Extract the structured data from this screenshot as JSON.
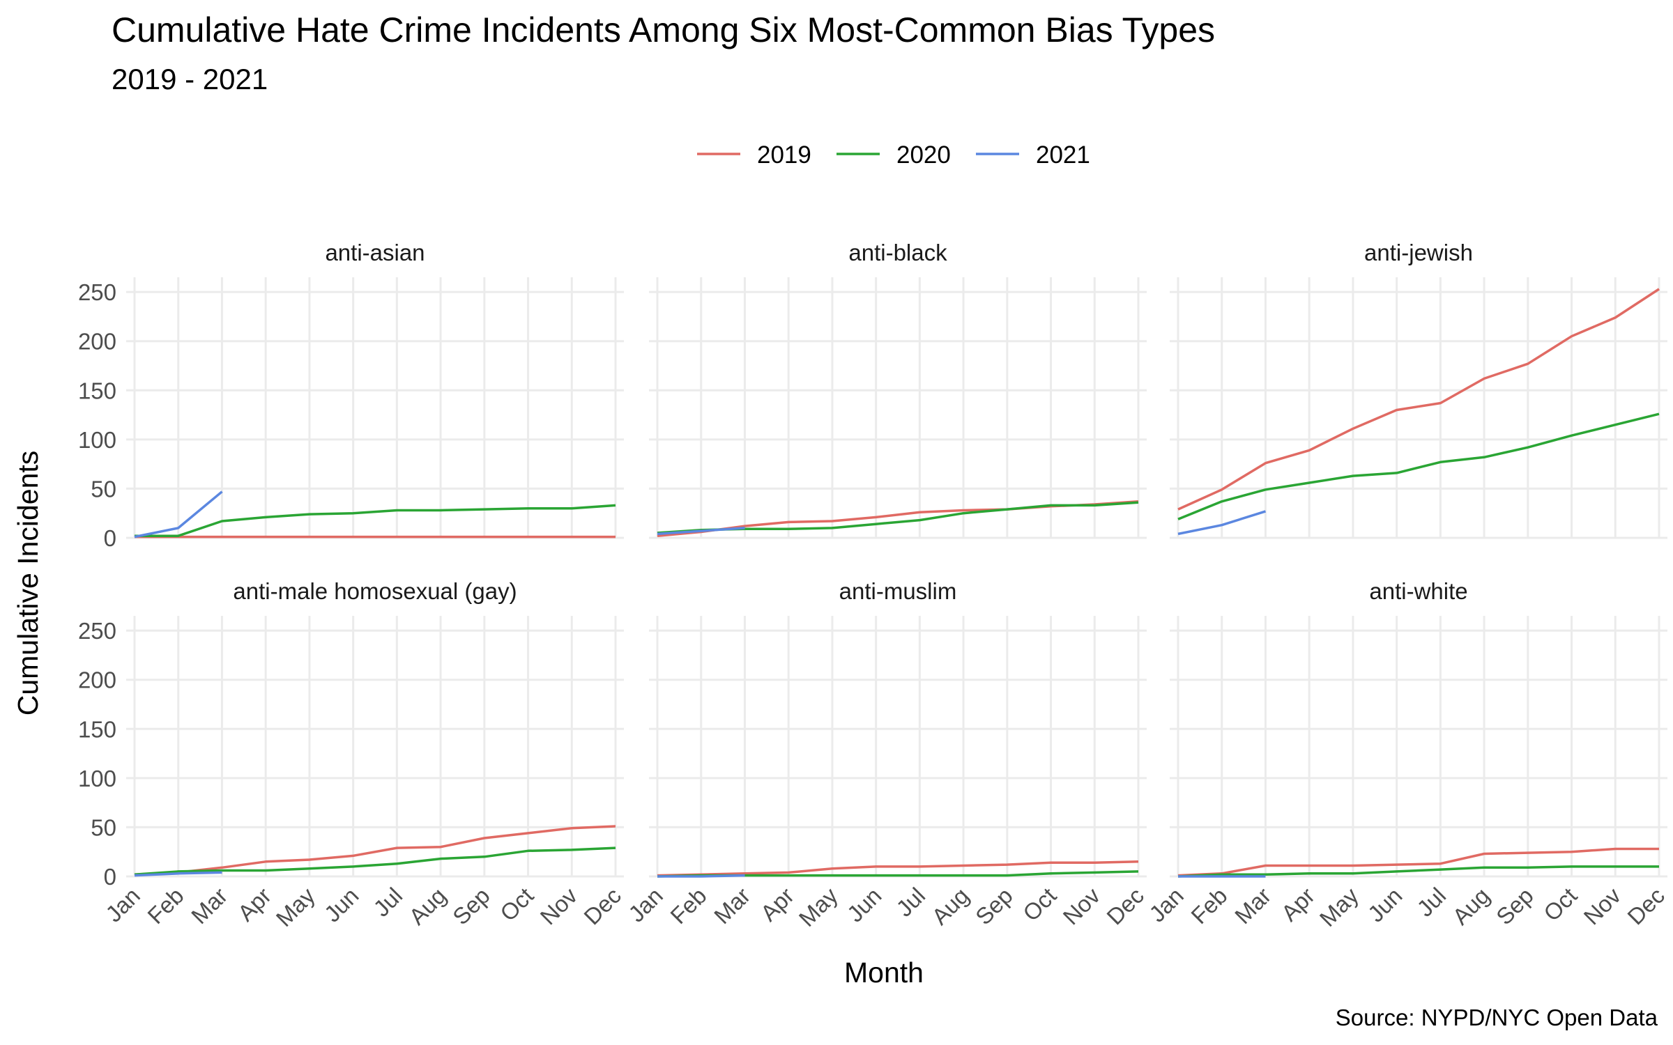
{
  "chart_data": {
    "type": "line",
    "title": "Cumulative Hate Crime Incidents Among Six Most-Common Bias Types",
    "subtitle": "2019 - 2021",
    "xlabel": "Month",
    "ylabel": "Cumulative Incidents",
    "caption": "Source: NYPD/NYC Open Data",
    "legend_position": "top",
    "grid": true,
    "ylim": [
      0,
      265
    ],
    "y_ticks": [
      0,
      50,
      100,
      150,
      200,
      250
    ],
    "categories": [
      "Jan",
      "Feb",
      "Mar",
      "Apr",
      "May",
      "Jun",
      "Jul",
      "Aug",
      "Sep",
      "Oct",
      "Nov",
      "Dec"
    ],
    "legend": [
      {
        "name": "2019",
        "color": "#E06A63"
      },
      {
        "name": "2020",
        "color": "#2AA534"
      },
      {
        "name": "2021",
        "color": "#5B87E0"
      }
    ],
    "panels": [
      {
        "label": "anti-asian",
        "series": [
          {
            "name": "2019",
            "values": [
              1,
              1,
              1,
              1,
              1,
              1,
              1,
              1,
              1,
              1,
              1,
              1
            ]
          },
          {
            "name": "2020",
            "values": [
              2,
              2,
              17,
              21,
              24,
              25,
              28,
              28,
              29,
              30,
              30,
              33
            ]
          },
          {
            "name": "2021",
            "values": [
              1,
              10,
              47
            ]
          }
        ]
      },
      {
        "label": "anti-black",
        "series": [
          {
            "name": "2019",
            "values": [
              2,
              6,
              12,
              16,
              17,
              21,
              26,
              28,
              29,
              32,
              34,
              37
            ]
          },
          {
            "name": "2020",
            "values": [
              5,
              8,
              9,
              9,
              10,
              14,
              18,
              25,
              29,
              33,
              33,
              36
            ]
          },
          {
            "name": "2021",
            "values": [
              4,
              7,
              10
            ]
          }
        ]
      },
      {
        "label": "anti-jewish",
        "series": [
          {
            "name": "2019",
            "values": [
              29,
              49,
              76,
              89,
              111,
              130,
              137,
              162,
              177,
              205,
              224,
              253
            ]
          },
          {
            "name": "2020",
            "values": [
              19,
              37,
              49,
              56,
              63,
              66,
              77,
              82,
              92,
              104,
              115,
              126
            ]
          },
          {
            "name": "2021",
            "values": [
              4,
              13,
              27
            ]
          }
        ]
      },
      {
        "label": "anti-male homosexual (gay)",
        "series": [
          {
            "name": "2019",
            "values": [
              2,
              4,
              9,
              15,
              17,
              21,
              29,
              30,
              39,
              44,
              49,
              51
            ]
          },
          {
            "name": "2020",
            "values": [
              2,
              5,
              6,
              6,
              8,
              10,
              13,
              18,
              20,
              26,
              27,
              29
            ]
          },
          {
            "name": "2021",
            "values": [
              1,
              3,
              4
            ]
          }
        ]
      },
      {
        "label": "anti-muslim",
        "series": [
          {
            "name": "2019",
            "values": [
              1,
              2,
              3,
              4,
              8,
              10,
              10,
              11,
              12,
              14,
              14,
              15
            ]
          },
          {
            "name": "2020",
            "values": [
              0,
              1,
              1,
              1,
              1,
              1,
              1,
              1,
              1,
              3,
              4,
              5
            ]
          },
          {
            "name": "2021",
            "values": [
              0,
              0,
              1
            ]
          }
        ]
      },
      {
        "label": "anti-white",
        "series": [
          {
            "name": "2019",
            "values": [
              1,
              3,
              11,
              11,
              11,
              12,
              13,
              23,
              24,
              25,
              28,
              28
            ]
          },
          {
            "name": "2020",
            "values": [
              0,
              2,
              2,
              3,
              3,
              5,
              7,
              9,
              9,
              10,
              10,
              10
            ]
          },
          {
            "name": "2021",
            "values": [
              0,
              0,
              0
            ]
          }
        ]
      }
    ]
  }
}
